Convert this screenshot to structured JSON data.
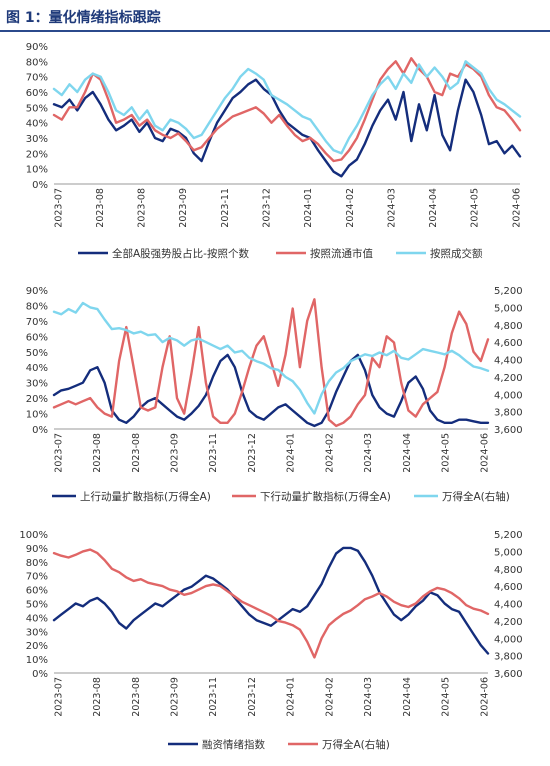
{
  "figure_title": "图 1：量化情绪指标跟踪",
  "colors": {
    "navy": "#142d7c",
    "red": "#e06666",
    "cyan": "#7fd6ee",
    "title": "#1f3a7a",
    "rule": "#2b4a8c"
  },
  "chart_data": [
    {
      "type": "line",
      "title": "",
      "xlabel": "",
      "ylabel": "",
      "ylim": [
        0,
        90
      ],
      "y_ticks": [
        "90%",
        "80%",
        "70%",
        "60%",
        "50%",
        "40%",
        "30%",
        "20%",
        "10%",
        "0%"
      ],
      "x_ticks": [
        "2023-07",
        "2023-08",
        "2023-08",
        "2023-09",
        "2023-11",
        "2023-12",
        "2024-01",
        "2024-02",
        "2024-03",
        "2024-04",
        "2024-05",
        "2024-06"
      ],
      "legend_position": "bottom",
      "series": [
        {
          "name": "全部A股强势股占比-按照个数",
          "color": "#142d7c",
          "values": [
            52,
            50,
            55,
            48,
            56,
            60,
            52,
            42,
            35,
            38,
            42,
            34,
            40,
            30,
            28,
            36,
            34,
            30,
            20,
            15,
            28,
            40,
            48,
            56,
            60,
            65,
            68,
            62,
            58,
            48,
            40,
            36,
            32,
            30,
            22,
            15,
            8,
            5,
            12,
            16,
            26,
            38,
            48,
            55,
            42,
            60,
            28,
            52,
            35,
            58,
            32,
            22,
            48,
            68,
            60,
            45,
            26,
            28,
            20,
            25,
            18
          ]
        },
        {
          "name": "按照流通市值",
          "color": "#e06666",
          "values": [
            45,
            42,
            50,
            50,
            60,
            72,
            68,
            55,
            40,
            42,
            45,
            38,
            42,
            35,
            32,
            30,
            33,
            28,
            22,
            24,
            30,
            36,
            40,
            44,
            46,
            48,
            50,
            46,
            40,
            45,
            38,
            32,
            28,
            30,
            26,
            20,
            15,
            16,
            22,
            30,
            42,
            55,
            68,
            75,
            80,
            72,
            82,
            75,
            70,
            60,
            58,
            72,
            70,
            78,
            75,
            70,
            58,
            50,
            48,
            42,
            35
          ]
        },
        {
          "name": "按照成交额",
          "color": "#7fd6ee",
          "values": [
            62,
            58,
            65,
            60,
            68,
            72,
            70,
            60,
            48,
            45,
            50,
            42,
            48,
            38,
            35,
            42,
            40,
            36,
            30,
            32,
            40,
            48,
            56,
            62,
            70,
            75,
            72,
            68,
            58,
            55,
            52,
            48,
            44,
            42,
            35,
            28,
            22,
            20,
            30,
            38,
            48,
            58,
            65,
            70,
            62,
            72,
            66,
            78,
            70,
            76,
            70,
            62,
            66,
            80,
            76,
            72,
            62,
            55,
            52,
            48,
            44
          ]
        }
      ]
    },
    {
      "type": "line",
      "title": "",
      "xlabel": "",
      "ylabel": "",
      "ylim": [
        0,
        90
      ],
      "y2lim": [
        3600,
        5200
      ],
      "y_ticks": [
        "90%",
        "80%",
        "70%",
        "60%",
        "50%",
        "40%",
        "30%",
        "20%",
        "10%",
        "0%"
      ],
      "y2_ticks": [
        "5,200",
        "5,000",
        "4,800",
        "4,600",
        "4,400",
        "4,200",
        "4,000",
        "3,800",
        "3,600"
      ],
      "x_ticks": [
        "2023-07",
        "2023-08",
        "2023-08",
        "2023-09",
        "2023-11",
        "2023-12",
        "2024-01",
        "2024-02",
        "2024-03",
        "2024-04",
        "2024-05",
        "2024-06"
      ],
      "legend_position": "bottom",
      "series": [
        {
          "name": "上行动量扩散指标(万得全A)",
          "color": "#142d7c",
          "axis": "left",
          "values": [
            22,
            25,
            26,
            28,
            30,
            38,
            40,
            30,
            12,
            6,
            4,
            8,
            14,
            18,
            20,
            16,
            12,
            8,
            6,
            10,
            15,
            22,
            34,
            44,
            48,
            40,
            24,
            12,
            8,
            6,
            10,
            14,
            16,
            12,
            8,
            4,
            2,
            4,
            12,
            24,
            34,
            44,
            48,
            38,
            22,
            14,
            10,
            8,
            18,
            30,
            34,
            26,
            12,
            6,
            4,
            4,
            6,
            6,
            5,
            4,
            4
          ]
        },
        {
          "name": "下行动量扩散指标(万得全A)",
          "color": "#e06666",
          "axis": "left",
          "values": [
            14,
            16,
            18,
            16,
            18,
            20,
            14,
            10,
            8,
            44,
            66,
            40,
            14,
            12,
            14,
            40,
            60,
            20,
            10,
            36,
            66,
            30,
            8,
            4,
            4,
            10,
            24,
            40,
            54,
            60,
            44,
            28,
            48,
            78,
            40,
            70,
            84,
            40,
            6,
            2,
            4,
            8,
            16,
            22,
            46,
            40,
            60,
            56,
            30,
            12,
            8,
            16,
            20,
            24,
            40,
            62,
            76,
            68,
            50,
            44,
            58
          ]
        },
        {
          "name": "万得全A(右轴)",
          "color": "#7fd6ee",
          "axis": "right",
          "values": [
            4950,
            4920,
            4980,
            4940,
            5050,
            5000,
            4980,
            4860,
            4750,
            4760,
            4740,
            4700,
            4720,
            4680,
            4690,
            4600,
            4650,
            4620,
            4560,
            4620,
            4640,
            4600,
            4560,
            4520,
            4560,
            4480,
            4500,
            4420,
            4380,
            4350,
            4300,
            4280,
            4200,
            4150,
            4050,
            3900,
            3780,
            4000,
            4150,
            4250,
            4300,
            4380,
            4420,
            4460,
            4440,
            4480,
            4450,
            4500,
            4420,
            4400,
            4460,
            4520,
            4500,
            4480,
            4460,
            4500,
            4450,
            4380,
            4320,
            4300,
            4270
          ]
        }
      ]
    },
    {
      "type": "line",
      "title": "",
      "xlabel": "",
      "ylabel": "",
      "ylim": [
        0,
        100
      ],
      "y2lim": [
        3600,
        5200
      ],
      "y_ticks": [
        "100%",
        "90%",
        "80%",
        "70%",
        "60%",
        "50%",
        "40%",
        "30%",
        "20%",
        "10%",
        "0%"
      ],
      "y2_ticks": [
        "5,200",
        "5,000",
        "4,800",
        "4,600",
        "4,400",
        "4,200",
        "4,000",
        "3,800",
        "3,600"
      ],
      "x_ticks": [
        "2023-07",
        "2023-08",
        "2023-08",
        "2023-09",
        "2023-11",
        "2023-12",
        "2024-01",
        "2024-02",
        "2024-03",
        "2024-04",
        "2024-05",
        "2024-06"
      ],
      "legend_position": "bottom",
      "series": [
        {
          "name": "融资情绪指数",
          "color": "#142d7c",
          "axis": "left",
          "values": [
            38,
            42,
            46,
            50,
            48,
            52,
            54,
            50,
            44,
            36,
            32,
            38,
            42,
            46,
            50,
            48,
            52,
            56,
            60,
            62,
            66,
            70,
            68,
            64,
            60,
            54,
            48,
            42,
            38,
            36,
            34,
            38,
            42,
            46,
            44,
            48,
            56,
            64,
            76,
            86,
            90,
            90,
            88,
            80,
            70,
            58,
            50,
            42,
            38,
            42,
            48,
            52,
            58,
            56,
            50,
            46,
            44,
            36,
            28,
            20,
            14
          ]
        },
        {
          "name": "万得全A(右轴)",
          "color": "#e06666",
          "axis": "right",
          "values": [
            4980,
            4950,
            4930,
            4960,
            5000,
            5020,
            4980,
            4900,
            4800,
            4760,
            4700,
            4660,
            4680,
            4640,
            4620,
            4600,
            4560,
            4540,
            4500,
            4520,
            4560,
            4600,
            4620,
            4600,
            4540,
            4480,
            4420,
            4380,
            4340,
            4300,
            4260,
            4200,
            4180,
            4150,
            4100,
            3960,
            3780,
            4000,
            4150,
            4220,
            4280,
            4320,
            4380,
            4450,
            4480,
            4520,
            4480,
            4420,
            4380,
            4360,
            4400,
            4480,
            4540,
            4580,
            4560,
            4520,
            4460,
            4380,
            4340,
            4320,
            4280
          ]
        }
      ]
    }
  ]
}
